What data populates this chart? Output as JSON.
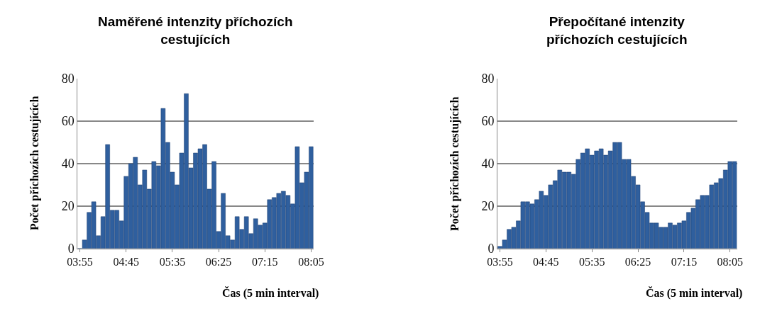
{
  "chart_data": [
    {
      "type": "bar",
      "title": "Naměřené intenzity příchozích cestujících",
      "xlabel": "Čas (5 min interval)",
      "ylabel": "Počet příchozích cestujících",
      "categories": [
        "03:55",
        null,
        null,
        null,
        null,
        null,
        null,
        null,
        null,
        null,
        "04:45",
        null,
        null,
        null,
        null,
        null,
        null,
        null,
        null,
        null,
        "05:35",
        null,
        null,
        null,
        null,
        null,
        null,
        null,
        null,
        null,
        "06:25",
        null,
        null,
        null,
        null,
        null,
        null,
        null,
        null,
        null,
        "07:15",
        null,
        null,
        null,
        null,
        null,
        null,
        null,
        null,
        null,
        "08:05"
      ],
      "values": [
        0,
        4,
        17,
        22,
        6,
        15,
        49,
        18,
        18,
        13,
        34,
        40,
        43,
        30,
        37,
        28,
        41,
        39,
        66,
        50,
        36,
        30,
        45,
        73,
        38,
        45,
        47,
        49,
        28,
        41,
        8,
        26,
        6,
        4,
        15,
        9,
        15,
        7,
        14,
        11,
        12,
        23,
        24,
        26,
        27,
        25,
        21,
        48,
        31,
        36,
        48
      ],
      "color": "#2f5f9e",
      "ylim": [
        0,
        80
      ],
      "yticks": [
        0,
        20,
        40,
        60,
        80
      ],
      "grid": "y"
    },
    {
      "type": "bar",
      "title": "Přepočítané intenzity příchozích cestujících",
      "xlabel": "Čas (5 min interval)",
      "ylabel": "Počet příchozích cestujících",
      "categories": [
        "03:55",
        null,
        null,
        null,
        null,
        null,
        null,
        null,
        null,
        null,
        "04:45",
        null,
        null,
        null,
        null,
        null,
        null,
        null,
        null,
        null,
        "05:35",
        null,
        null,
        null,
        null,
        null,
        null,
        null,
        null,
        null,
        "06:25",
        null,
        null,
        null,
        null,
        null,
        null,
        null,
        null,
        null,
        "07:15",
        null,
        null,
        null,
        null,
        null,
        null,
        null,
        null,
        null,
        "08:05",
        null
      ],
      "values": [
        1,
        4,
        9,
        10,
        13,
        22,
        22,
        21,
        23,
        27,
        25,
        30,
        32,
        37,
        36,
        36,
        35,
        42,
        45,
        47,
        44,
        46,
        47,
        44,
        46,
        50,
        50,
        42,
        42,
        34,
        30,
        22,
        17,
        12,
        12,
        10,
        10,
        12,
        11,
        12,
        13,
        17,
        19,
        23,
        25,
        25,
        30,
        31,
        33,
        37,
        41,
        41
      ],
      "color": "#2f5f9e",
      "ylim": [
        0,
        80
      ],
      "yticks": [
        0,
        20,
        40,
        60,
        80
      ],
      "grid": "y"
    }
  ]
}
